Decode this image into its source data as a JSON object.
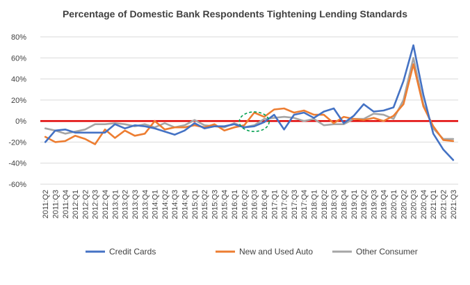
{
  "chart_data": {
    "type": "line",
    "title": "Percentage of Domestic Bank Respondents Tightening Lending Standards",
    "xlabel": "",
    "ylabel": "",
    "ylim": [
      -60,
      80
    ],
    "yticks": [
      -60,
      -40,
      -20,
      0,
      20,
      40,
      60,
      80
    ],
    "ytick_labels": [
      "-60%",
      "-40%",
      "-20%",
      "0%",
      "20%",
      "40%",
      "60%",
      "80%"
    ],
    "x": [
      "2011:Q2",
      "2011:Q3",
      "2011:Q4",
      "2012:Q1",
      "2012:Q2",
      "2012:Q3",
      "2012:Q4",
      "2013:Q1",
      "2013:Q2",
      "2013:Q3",
      "2013:Q4",
      "2014:Q1",
      "2014:Q2",
      "2014:Q3",
      "2014:Q4",
      "2015:Q1",
      "2015:Q2",
      "2015:Q3",
      "2015:Q4",
      "2016:Q1",
      "2016:Q2",
      "2016:Q3",
      "2016:Q4",
      "2017:Q1",
      "2017:Q2",
      "2017:Q3",
      "2017:Q4",
      "2018:Q1",
      "2018:Q2",
      "2018:Q3",
      "2018:Q4",
      "2019:Q1",
      "2019:Q2",
      "2019:Q3",
      "2019:Q4",
      "2020:Q1",
      "2020:Q2",
      "2020:Q3",
      "2020:Q4",
      "2021:Q1",
      "2021:Q2",
      "2021:Q3"
    ],
    "grid": "horizontal",
    "legend_position": "bottom",
    "zero_line_color": "#e00000",
    "annotation": {
      "type": "dashed-ellipse",
      "color": "#00a050",
      "x_center_index": 21.0,
      "y_center": -0.6,
      "x_half_span": 1.5,
      "y_half_span": 9.3
    },
    "series": [
      {
        "name": "Credit Cards",
        "color": "#4472c4",
        "values": [
          -20,
          -9,
          -8,
          -11,
          -11,
          -11,
          -11,
          -3,
          -7,
          -4,
          -5,
          -7,
          -10,
          -13,
          -9,
          -2,
          -7,
          -5,
          -5,
          -3,
          -6,
          -5,
          -1,
          6,
          -8,
          6,
          8,
          3,
          9,
          12,
          -2,
          5,
          16,
          9,
          10,
          13,
          38,
          72,
          25,
          -12,
          -27,
          -37
        ]
      },
      {
        "name": "New and Used Auto",
        "color": "#ed7d31",
        "values": [
          -15,
          -20,
          -19,
          -14,
          -17,
          -22,
          -8,
          -16,
          -9,
          -14,
          -12,
          0,
          -8,
          -6,
          -6,
          -4,
          -6,
          -3,
          -9,
          -6,
          -4,
          8,
          4,
          11,
          12,
          8,
          10,
          6,
          6,
          -2,
          4,
          2,
          1,
          3,
          0,
          5,
          16,
          54,
          14,
          -5,
          -18,
          -19
        ]
      },
      {
        "name": "Other Consumer",
        "color": "#a5a5a5",
        "values": [
          -7,
          -9,
          -12,
          -10,
          -8,
          -3,
          -3,
          -2,
          -3,
          -5,
          -3,
          -6,
          -2,
          -6,
          -4,
          1,
          -4,
          -5,
          -6,
          -2,
          -6,
          -4,
          2,
          3,
          4,
          3,
          0,
          2,
          -4,
          -3,
          -3,
          2,
          2,
          7,
          6,
          2,
          20,
          60,
          16,
          -7,
          -17,
          -17
        ]
      }
    ]
  }
}
